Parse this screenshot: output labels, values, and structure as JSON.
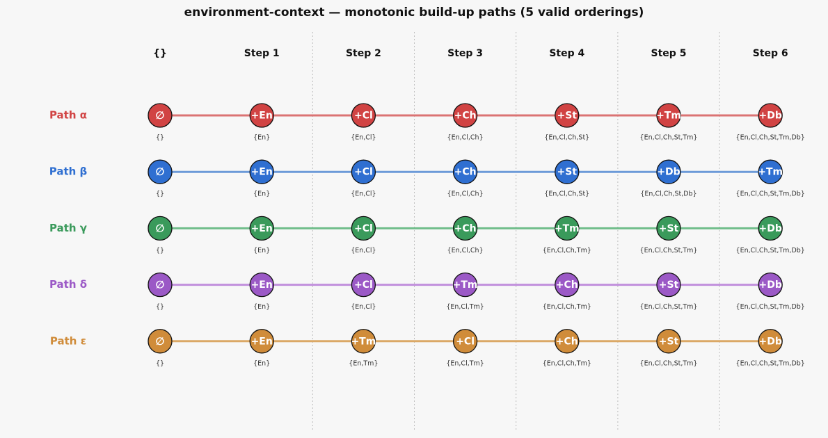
{
  "title": "environment-context — monotonic build-up paths  (5 valid orderings)",
  "columns": [
    "{}",
    "Step 1",
    "Step 2",
    "Step 3",
    "Step 4",
    "Step 5",
    "Step 6"
  ],
  "paths": [
    {
      "label": "Path α",
      "color": "#d14343",
      "line_color": "#db7373",
      "nodes": [
        "∅",
        "+En",
        "+Cl",
        "+Ch",
        "+St",
        "+Tm",
        "+Db"
      ],
      "sets": [
        "{}",
        "{En}",
        "{En,Cl}",
        "{En,Cl,Ch}",
        "{En,Cl,Ch,St}",
        "{En,Cl,Ch,St,Tm}",
        "{En,Cl,Ch,St,Tm,Db}"
      ]
    },
    {
      "label": "Path β",
      "color": "#2f6fd1",
      "line_color": "#6c9ad8",
      "nodes": [
        "∅",
        "+En",
        "+Cl",
        "+Ch",
        "+St",
        "+Db",
        "+Tm"
      ],
      "sets": [
        "{}",
        "{En}",
        "{En,Cl}",
        "{En,Cl,Ch}",
        "{En,Cl,Ch,St}",
        "{En,Cl,Ch,St,Db}",
        "{En,Cl,Ch,St,Tm,Db}"
      ]
    },
    {
      "label": "Path γ",
      "color": "#3a9a5b",
      "line_color": "#6fbd8a",
      "nodes": [
        "∅",
        "+En",
        "+Cl",
        "+Ch",
        "+Tm",
        "+St",
        "+Db"
      ],
      "sets": [
        "{}",
        "{En}",
        "{En,Cl}",
        "{En,Cl,Ch}",
        "{En,Cl,Ch,Tm}",
        "{En,Cl,Ch,St,Tm}",
        "{En,Cl,Ch,St,Tm,Db}"
      ]
    },
    {
      "label": "Path δ",
      "color": "#9b59c6",
      "line_color": "#c18fdc",
      "nodes": [
        "∅",
        "+En",
        "+Cl",
        "+Tm",
        "+Ch",
        "+St",
        "+Db"
      ],
      "sets": [
        "{}",
        "{En}",
        "{En,Cl}",
        "{En,Cl,Tm}",
        "{En,Cl,Ch,Tm}",
        "{En,Cl,Ch,St,Tm}",
        "{En,Cl,Ch,St,Tm,Db}"
      ]
    },
    {
      "label": "Path ε",
      "color": "#d08c3a",
      "line_color": "#dba866",
      "nodes": [
        "∅",
        "+En",
        "+Tm",
        "+Cl",
        "+Ch",
        "+St",
        "+Db"
      ],
      "sets": [
        "{}",
        "{En}",
        "{En,Tm}",
        "{En,Cl,Tm}",
        "{En,Cl,Ch,Tm}",
        "{En,Cl,Ch,St,Tm}",
        "{En,Cl,Ch,St,Tm,Db}"
      ]
    }
  ]
}
